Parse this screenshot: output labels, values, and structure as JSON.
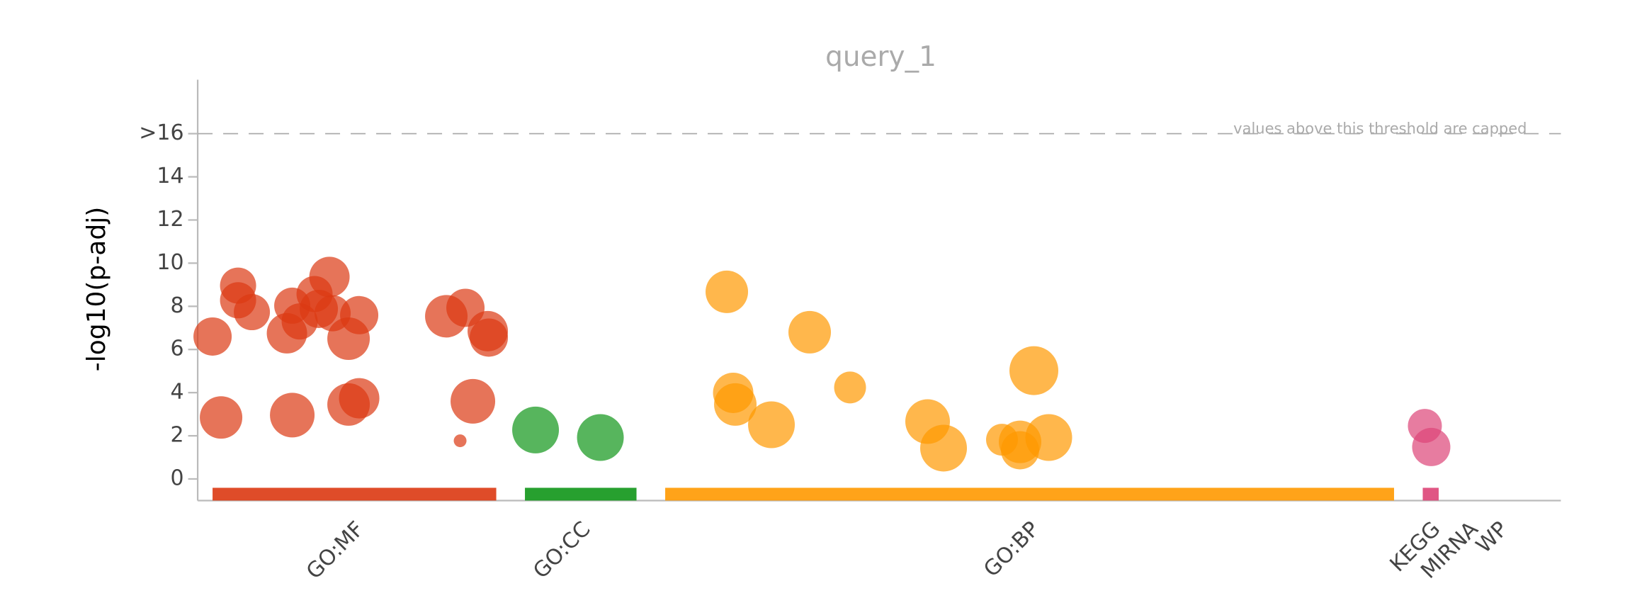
{
  "chart_data": {
    "type": "scatter",
    "title": "query_1",
    "ylabel": "-log10(p-adj)",
    "annotation": "values above this threshold are capped",
    "threshold": 16,
    "xlim": [
      0,
      1283
    ],
    "ylim": [
      -1,
      18.5
    ],
    "yticks": [
      0,
      2,
      4,
      6,
      8,
      10,
      12,
      14,
      {
        "value": 16,
        "label": ">16"
      }
    ],
    "grid": false,
    "categories": [
      "GO:MF",
      "GO:CC",
      "GO:BP",
      "KEGG",
      "MIRNA",
      "WP"
    ],
    "category_ranges": [
      [
        14,
        281
      ],
      [
        308,
        413
      ],
      [
        440,
        1126
      ],
      [
        1153,
        1168
      ],
      [
        1196,
        1196
      ],
      [
        1224,
        1224
      ]
    ],
    "series": [
      {
        "name": "GO:MF",
        "color": "#dc3912",
        "x": [
          14,
          22,
          38,
          38,
          51,
          84,
          89,
          89,
          96,
          110,
          114,
          124,
          127,
          142,
          152,
          142,
          152,
          234,
          252,
          247,
          259,
          273,
          274
        ],
        "values": [
          6.6,
          2.85,
          8.96,
          8.28,
          7.73,
          6.75,
          2.96,
          8.03,
          7.3,
          8.57,
          7.88,
          9.36,
          7.68,
          6.5,
          7.59,
          3.45,
          3.74,
          7.54,
          7.93,
          1.77,
          3.6,
          6.85,
          6.55
        ],
        "sizes": [
          18,
          20,
          17,
          17,
          17,
          19,
          21,
          17,
          17,
          17,
          18,
          19,
          17,
          20,
          18,
          20,
          19,
          20,
          18,
          6,
          21,
          19,
          18
        ]
      },
      {
        "name": "GO:CC",
        "color": "#109618",
        "x": [
          318,
          379
        ],
        "values": [
          2.27,
          1.92
        ],
        "sizes": [
          22,
          22
        ]
      },
      {
        "name": "GO:BP",
        "color": "#ff9900",
        "x": [
          498,
          504,
          506,
          540,
          576,
          614,
          687,
          702,
          757,
          774,
          774,
          801,
          787
        ],
        "values": [
          8.67,
          3.99,
          3.45,
          2.51,
          6.8,
          4.24,
          2.66,
          1.43,
          1.82,
          1.72,
          1.33,
          1.92,
          5.02
        ],
        "sizes": [
          20,
          19,
          20,
          22,
          20,
          15,
          21,
          22,
          15,
          20,
          18,
          22,
          23
        ]
      },
      {
        "name": "KEGG",
        "color": "#dd4477",
        "x": [
          1155,
          1161
        ],
        "values": [
          2.46,
          1.48
        ],
        "sizes": [
          16,
          18
        ]
      },
      {
        "name": "MIRNA",
        "color": "#5574a6",
        "x": [],
        "values": [],
        "sizes": []
      },
      {
        "name": "WP",
        "color": "#0099c6",
        "x": [],
        "values": [],
        "sizes": []
      }
    ]
  }
}
